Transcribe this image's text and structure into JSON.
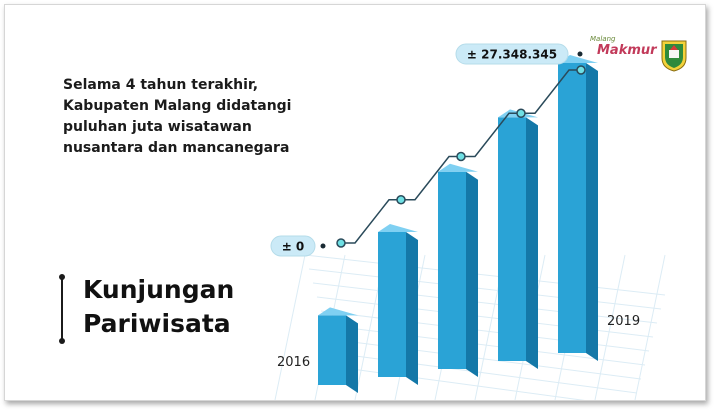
{
  "intro": {
    "lines": [
      "Selama 4 tahun terakhir,",
      "Kabupaten Malang didatangi",
      "puluhan juta wisatawan",
      "nusantara dan mancanegara"
    ]
  },
  "title": {
    "line1": "Kunjungan",
    "line2": "Pariwisata"
  },
  "logo": {
    "main": "Makmur",
    "sub": "Malang"
  },
  "colors": {
    "bar_front": "#2aa3d6",
    "bar_side": "#1478a8",
    "bar_top": "#7fd0f2",
    "callout": "#cbeaf7",
    "line": "#2a4a5a",
    "marker": "#6fe0e4"
  },
  "chart_data": {
    "type": "bar",
    "title": "Kunjungan Pariwisata",
    "x_labels": [
      "2016",
      "2019"
    ],
    "callouts": [
      {
        "label": "± 0"
      },
      {
        "label": "± 27.348.345"
      }
    ],
    "bars": 5,
    "values_relative": [
      0.24,
      0.5,
      0.68,
      0.84,
      1.0
    ],
    "line_points_relative": [
      0.0,
      0.25,
      0.5,
      0.75,
      1.0
    ]
  }
}
